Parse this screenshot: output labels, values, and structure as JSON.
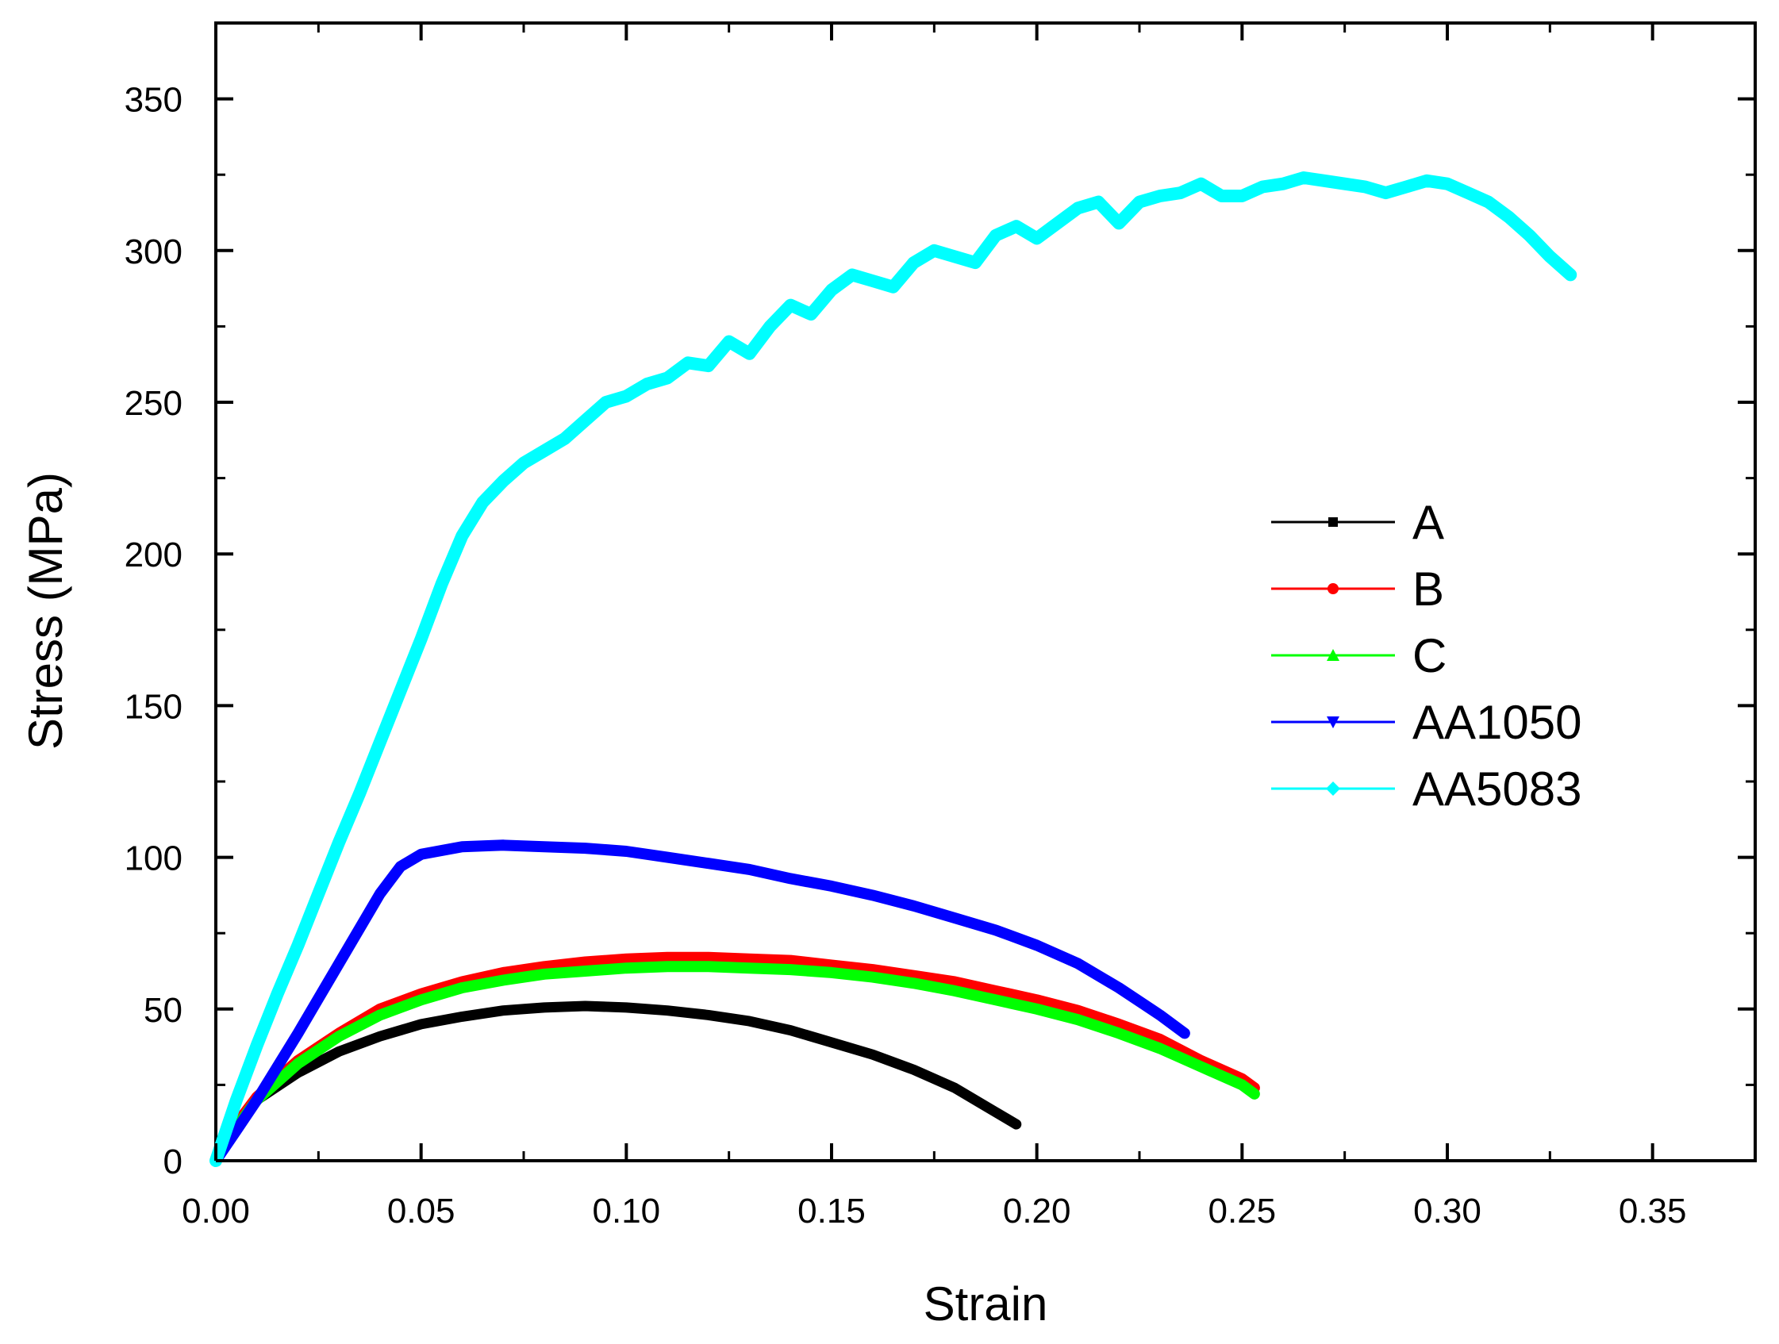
{
  "chart_data": {
    "type": "line",
    "title": "",
    "xlabel": "Strain",
    "ylabel": "Stress (MPa)",
    "xlim": [
      0,
      0.375
    ],
    "ylim": [
      0,
      375
    ],
    "x_ticks": [
      "0.00",
      "0.05",
      "0.10",
      "0.15",
      "0.20",
      "0.25",
      "0.30",
      "0.35"
    ],
    "y_ticks": [
      "0",
      "50",
      "100",
      "150",
      "200",
      "250",
      "300",
      "350"
    ],
    "x_tick_values": [
      0,
      0.05,
      0.1,
      0.15,
      0.2,
      0.25,
      0.3,
      0.35
    ],
    "y_tick_values": [
      0,
      50,
      100,
      150,
      200,
      250,
      300,
      350
    ],
    "grid": false,
    "legend_position": "right",
    "series": [
      {
        "name": "A",
        "color": "#000000",
        "marker": "square",
        "points": [
          [
            0,
            0
          ],
          [
            0.005,
            11
          ],
          [
            0.01,
            20
          ],
          [
            0.02,
            29
          ],
          [
            0.03,
            36
          ],
          [
            0.04,
            41
          ],
          [
            0.05,
            45
          ],
          [
            0.06,
            47.5
          ],
          [
            0.07,
            49.5
          ],
          [
            0.08,
            50.5
          ],
          [
            0.09,
            51
          ],
          [
            0.1,
            50.5
          ],
          [
            0.11,
            49.5
          ],
          [
            0.12,
            48
          ],
          [
            0.13,
            46
          ],
          [
            0.14,
            43
          ],
          [
            0.15,
            39
          ],
          [
            0.16,
            35
          ],
          [
            0.17,
            30
          ],
          [
            0.18,
            24
          ],
          [
            0.19,
            16
          ],
          [
            0.195,
            12
          ]
        ]
      },
      {
        "name": "B",
        "color": "#ff0000",
        "marker": "circle",
        "points": [
          [
            0,
            0
          ],
          [
            0.005,
            12
          ],
          [
            0.01,
            21
          ],
          [
            0.02,
            33
          ],
          [
            0.03,
            42
          ],
          [
            0.04,
            50
          ],
          [
            0.05,
            55
          ],
          [
            0.06,
            59
          ],
          [
            0.07,
            62
          ],
          [
            0.08,
            64
          ],
          [
            0.09,
            65.5
          ],
          [
            0.1,
            66.5
          ],
          [
            0.11,
            67
          ],
          [
            0.12,
            67
          ],
          [
            0.13,
            66.5
          ],
          [
            0.14,
            66
          ],
          [
            0.15,
            64.5
          ],
          [
            0.16,
            63
          ],
          [
            0.17,
            61
          ],
          [
            0.18,
            59
          ],
          [
            0.19,
            56
          ],
          [
            0.2,
            53
          ],
          [
            0.21,
            49.5
          ],
          [
            0.22,
            45
          ],
          [
            0.23,
            40
          ],
          [
            0.24,
            33
          ],
          [
            0.25,
            27
          ],
          [
            0.253,
            24
          ]
        ]
      },
      {
        "name": "C",
        "color": "#00ff00",
        "marker": "triangle-up",
        "points": [
          [
            0,
            0
          ],
          [
            0.005,
            11
          ],
          [
            0.01,
            20
          ],
          [
            0.02,
            32
          ],
          [
            0.03,
            41
          ],
          [
            0.04,
            48
          ],
          [
            0.05,
            53
          ],
          [
            0.06,
            57
          ],
          [
            0.07,
            59.5
          ],
          [
            0.08,
            61.5
          ],
          [
            0.09,
            62.5
          ],
          [
            0.1,
            63.5
          ],
          [
            0.11,
            64
          ],
          [
            0.12,
            64
          ],
          [
            0.13,
            63.5
          ],
          [
            0.14,
            63
          ],
          [
            0.15,
            62
          ],
          [
            0.16,
            60.5
          ],
          [
            0.17,
            58.5
          ],
          [
            0.18,
            56
          ],
          [
            0.19,
            53
          ],
          [
            0.2,
            50
          ],
          [
            0.21,
            46.5
          ],
          [
            0.22,
            42
          ],
          [
            0.23,
            37
          ],
          [
            0.24,
            31
          ],
          [
            0.25,
            25
          ],
          [
            0.253,
            22
          ]
        ]
      },
      {
        "name": "AA1050",
        "color": "#0000ff",
        "marker": "triangle-down",
        "points": [
          [
            0,
            0
          ],
          [
            0.005,
            10
          ],
          [
            0.01,
            20
          ],
          [
            0.02,
            42
          ],
          [
            0.03,
            65
          ],
          [
            0.04,
            88
          ],
          [
            0.045,
            97
          ],
          [
            0.05,
            101
          ],
          [
            0.06,
            103.5
          ],
          [
            0.07,
            104
          ],
          [
            0.08,
            103.5
          ],
          [
            0.09,
            103
          ],
          [
            0.1,
            102
          ],
          [
            0.11,
            100
          ],
          [
            0.12,
            98
          ],
          [
            0.13,
            96
          ],
          [
            0.14,
            93
          ],
          [
            0.15,
            90.5
          ],
          [
            0.16,
            87.5
          ],
          [
            0.17,
            84
          ],
          [
            0.18,
            80
          ],
          [
            0.19,
            76
          ],
          [
            0.2,
            71
          ],
          [
            0.21,
            65
          ],
          [
            0.22,
            57
          ],
          [
            0.23,
            48
          ],
          [
            0.236,
            42
          ]
        ]
      },
      {
        "name": "AA5083",
        "color": "#00ffff",
        "marker": "diamond",
        "points": [
          [
            0,
            0
          ],
          [
            0.005,
            20
          ],
          [
            0.01,
            38
          ],
          [
            0.015,
            55
          ],
          [
            0.02,
            71
          ],
          [
            0.025,
            88
          ],
          [
            0.03,
            105
          ],
          [
            0.035,
            121
          ],
          [
            0.04,
            138
          ],
          [
            0.045,
            155
          ],
          [
            0.05,
            172
          ],
          [
            0.055,
            190
          ],
          [
            0.06,
            206
          ],
          [
            0.065,
            217
          ],
          [
            0.07,
            224
          ],
          [
            0.075,
            230
          ],
          [
            0.08,
            234
          ],
          [
            0.085,
            238
          ],
          [
            0.09,
            244
          ],
          [
            0.095,
            250
          ],
          [
            0.1,
            252
          ],
          [
            0.105,
            256
          ],
          [
            0.11,
            258
          ],
          [
            0.115,
            263
          ],
          [
            0.12,
            262
          ],
          [
            0.125,
            270
          ],
          [
            0.13,
            266
          ],
          [
            0.135,
            275
          ],
          [
            0.14,
            282
          ],
          [
            0.145,
            279
          ],
          [
            0.15,
            287
          ],
          [
            0.155,
            292
          ],
          [
            0.16,
            290
          ],
          [
            0.165,
            288
          ],
          [
            0.17,
            296
          ],
          [
            0.175,
            300
          ],
          [
            0.18,
            298
          ],
          [
            0.185,
            296
          ],
          [
            0.19,
            305
          ],
          [
            0.195,
            308
          ],
          [
            0.2,
            304
          ],
          [
            0.205,
            309
          ],
          [
            0.21,
            314
          ],
          [
            0.215,
            316
          ],
          [
            0.22,
            309
          ],
          [
            0.225,
            316
          ],
          [
            0.23,
            318
          ],
          [
            0.235,
            319
          ],
          [
            0.24,
            322
          ],
          [
            0.245,
            318
          ],
          [
            0.25,
            318
          ],
          [
            0.255,
            321
          ],
          [
            0.26,
            322
          ],
          [
            0.265,
            324
          ],
          [
            0.27,
            323
          ],
          [
            0.275,
            322
          ],
          [
            0.28,
            321
          ],
          [
            0.285,
            319
          ],
          [
            0.29,
            321
          ],
          [
            0.295,
            323
          ],
          [
            0.3,
            322
          ],
          [
            0.305,
            319
          ],
          [
            0.31,
            316
          ],
          [
            0.315,
            311
          ],
          [
            0.32,
            305
          ],
          [
            0.325,
            298
          ],
          [
            0.33,
            292
          ]
        ]
      }
    ]
  }
}
